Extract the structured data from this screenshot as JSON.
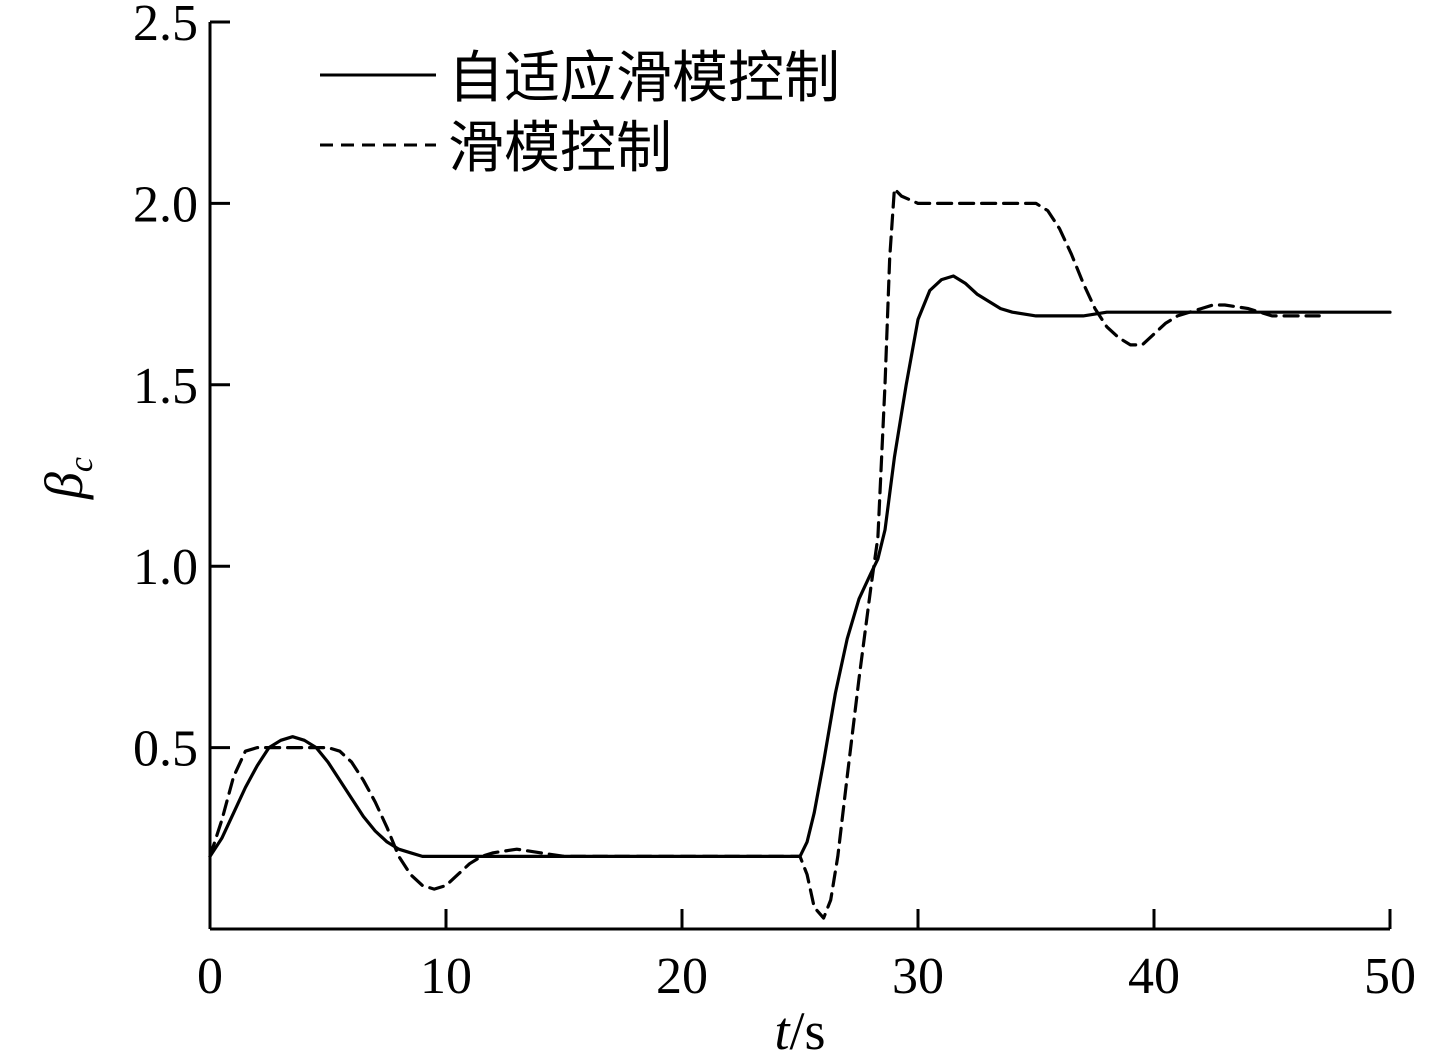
{
  "chart_data": {
    "type": "line",
    "title": "",
    "xlabel_italic": "t",
    "xlabel_unit": "/s",
    "ylabel_main": "β",
    "ylabel_sub": "c",
    "xlim": [
      0,
      50
    ],
    "ylim": [
      0,
      2.5
    ],
    "xticks": [
      0,
      10,
      20,
      30,
      40,
      50
    ],
    "xtick_labels": [
      "0",
      "10",
      "20",
      "30",
      "40",
      "50"
    ],
    "yticks": [
      0.5,
      1.0,
      1.5,
      2.0,
      2.5
    ],
    "ytick_labels": [
      "0.5",
      "1.0",
      "1.5",
      "2.0",
      "2.5"
    ],
    "grid": false,
    "legend_position": "top-left",
    "series": [
      {
        "name": "自适应滑模控制",
        "style": "solid",
        "color": "#000000",
        "x": [
          0,
          0.5,
          1,
          1.5,
          2,
          2.5,
          3,
          3.5,
          4,
          4.5,
          5,
          5.5,
          6,
          6.5,
          7,
          7.5,
          8,
          8.5,
          9,
          9.5,
          10,
          11,
          12,
          13,
          15,
          18,
          20,
          22,
          24,
          25,
          25.3,
          25.6,
          26,
          26.5,
          27,
          27.5,
          28,
          28.3,
          28.6,
          29,
          29.5,
          30,
          30.5,
          31,
          31.5,
          32,
          32.5,
          33,
          33.5,
          34,
          35,
          36,
          37,
          38,
          39,
          40,
          41,
          42,
          43,
          44,
          45,
          46,
          47,
          48,
          49,
          50
        ],
        "values": [
          0.2,
          0.25,
          0.32,
          0.39,
          0.45,
          0.5,
          0.52,
          0.53,
          0.52,
          0.5,
          0.46,
          0.41,
          0.36,
          0.31,
          0.27,
          0.24,
          0.22,
          0.21,
          0.2,
          0.2,
          0.2,
          0.2,
          0.2,
          0.2,
          0.2,
          0.2,
          0.2,
          0.2,
          0.2,
          0.2,
          0.24,
          0.32,
          0.46,
          0.65,
          0.8,
          0.91,
          0.98,
          1.02,
          1.1,
          1.3,
          1.5,
          1.68,
          1.76,
          1.79,
          1.8,
          1.78,
          1.75,
          1.73,
          1.71,
          1.7,
          1.69,
          1.69,
          1.69,
          1.7,
          1.7,
          1.7,
          1.7,
          1.7,
          1.7,
          1.7,
          1.7,
          1.7,
          1.7,
          1.7,
          1.7,
          1.7
        ]
      },
      {
        "name": "滑模控制",
        "style": "dashed",
        "color": "#000000",
        "x": [
          0,
          0.5,
          1,
          1.5,
          2,
          2.5,
          3,
          4,
          5,
          5.5,
          6,
          6.5,
          7,
          7.5,
          8,
          8.5,
          9,
          9.5,
          10,
          10.5,
          11,
          11.5,
          12,
          13,
          14,
          15,
          16,
          18,
          20,
          22,
          24,
          25,
          25.3,
          25.6,
          26,
          26.3,
          26.6,
          27,
          27.5,
          28,
          28.3,
          28.6,
          28.8,
          29,
          29.3,
          30,
          32,
          34,
          35,
          35.5,
          36,
          36.5,
          37,
          37.5,
          38,
          38.5,
          39,
          39.5,
          40,
          40.5,
          41,
          41.5,
          42,
          42.5,
          43,
          44,
          45,
          46,
          47
        ],
        "values": [
          0.2,
          0.3,
          0.42,
          0.49,
          0.5,
          0.5,
          0.5,
          0.5,
          0.5,
          0.49,
          0.46,
          0.41,
          0.35,
          0.28,
          0.2,
          0.15,
          0.12,
          0.11,
          0.12,
          0.15,
          0.18,
          0.2,
          0.21,
          0.22,
          0.21,
          0.2,
          0.2,
          0.2,
          0.2,
          0.2,
          0.2,
          0.2,
          0.15,
          0.06,
          0.03,
          0.08,
          0.2,
          0.42,
          0.69,
          0.94,
          1.08,
          1.5,
          1.85,
          2.04,
          2.02,
          2.0,
          2.0,
          2.0,
          2.0,
          1.98,
          1.93,
          1.86,
          1.78,
          1.71,
          1.66,
          1.63,
          1.61,
          1.61,
          1.64,
          1.67,
          1.69,
          1.7,
          1.71,
          1.72,
          1.72,
          1.71,
          1.69,
          1.69,
          1.69
        ]
      }
    ]
  }
}
